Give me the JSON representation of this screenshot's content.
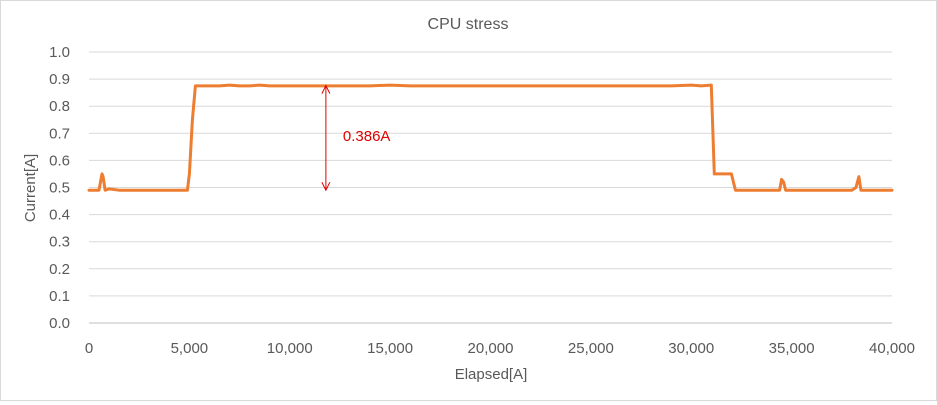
{
  "chart_data": {
    "type": "line",
    "title": "CPU stress",
    "xlabel": "Elapsed[A]",
    "ylabel": "Current[A]",
    "xlim": [
      0,
      40000
    ],
    "ylim": [
      0,
      1.0
    ],
    "x_ticks": [
      0,
      5000,
      10000,
      15000,
      20000,
      25000,
      30000,
      35000,
      40000
    ],
    "x_tick_labels": [
      "0",
      "5,000",
      "10,000",
      "15,000",
      "20,000",
      "25,000",
      "30,000",
      "35,000",
      "40,000"
    ],
    "y_ticks": [
      0,
      0.1,
      0.2,
      0.3,
      0.4,
      0.5,
      0.6,
      0.7,
      0.8,
      0.9,
      1.0
    ],
    "y_tick_labels": [
      "0.0",
      "0.1",
      "0.2",
      "0.3",
      "0.4",
      "0.5",
      "0.6",
      "0.7",
      "0.8",
      "0.9",
      "1.0"
    ],
    "grid": "horizontal",
    "legend": "none",
    "series": [
      {
        "color": "#ED7D31",
        "x": [
          0,
          500,
          650,
          700,
          800,
          1000,
          1500,
          2000,
          2500,
          3000,
          3500,
          4000,
          4500,
          4900,
          5000,
          5150,
          5300,
          5500,
          6000,
          6500,
          7000,
          7500,
          8000,
          8500,
          9000,
          9500,
          10000,
          11000,
          12000,
          13000,
          14000,
          15000,
          16000,
          17000,
          18000,
          19000,
          20000,
          21000,
          22000,
          23000,
          24000,
          25000,
          26000,
          27000,
          28000,
          29000,
          30000,
          30500,
          31000,
          31150,
          31250,
          31500,
          32000,
          32200,
          32300,
          32500,
          33000,
          33500,
          34000,
          34400,
          34500,
          34600,
          34700,
          35000,
          36000,
          37000,
          38000,
          38200,
          38350,
          38450,
          38600,
          39000,
          39500,
          40000
        ],
        "y": [
          0.49,
          0.49,
          0.55,
          0.54,
          0.49,
          0.495,
          0.49,
          0.49,
          0.49,
          0.49,
          0.49,
          0.49,
          0.49,
          0.49,
          0.55,
          0.75,
          0.875,
          0.875,
          0.875,
          0.875,
          0.878,
          0.875,
          0.875,
          0.878,
          0.875,
          0.875,
          0.875,
          0.875,
          0.875,
          0.875,
          0.875,
          0.878,
          0.875,
          0.875,
          0.875,
          0.875,
          0.875,
          0.875,
          0.875,
          0.875,
          0.875,
          0.875,
          0.875,
          0.875,
          0.875,
          0.875,
          0.878,
          0.875,
          0.878,
          0.55,
          0.55,
          0.55,
          0.55,
          0.49,
          0.49,
          0.49,
          0.49,
          0.49,
          0.49,
          0.49,
          0.53,
          0.52,
          0.49,
          0.49,
          0.49,
          0.49,
          0.49,
          0.5,
          0.54,
          0.49,
          0.49,
          0.49,
          0.49,
          0.49
        ]
      }
    ],
    "annotations": [
      {
        "text": "0.386A",
        "color": "#E00000",
        "x": 11800,
        "y_from": 0.49,
        "y_to": 0.876
      }
    ]
  }
}
